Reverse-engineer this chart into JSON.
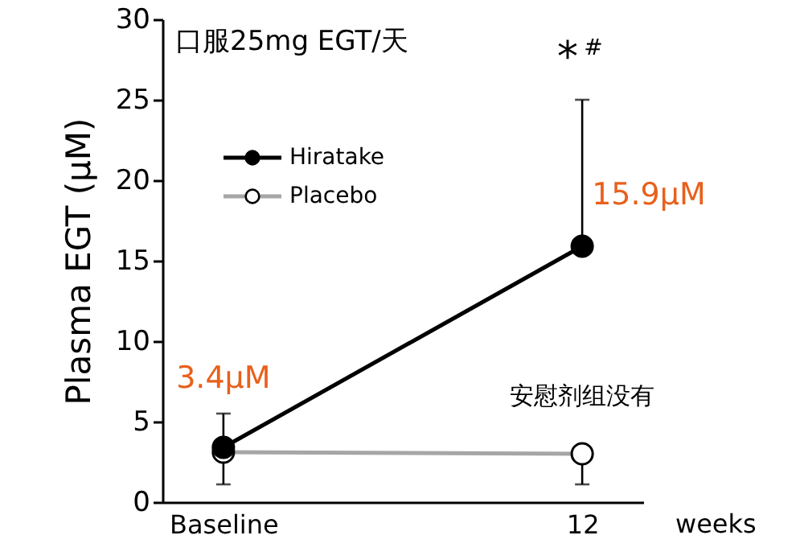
{
  "chart_data": {
    "type": "line",
    "categories": [
      "Baseline",
      "12"
    ],
    "xlabel": "weeks",
    "ylabel": "Plasma EGT (μM)",
    "ylim": [
      0,
      30
    ],
    "yticks": [
      0,
      5,
      10,
      15,
      20,
      25,
      30
    ],
    "series": [
      {
        "name": "Hiratake",
        "color": "#000000",
        "values": [
          3.4,
          15.9
        ],
        "errors": [
          [
            3.4,
            5.5
          ],
          [
            15.9,
            25.0
          ]
        ]
      },
      {
        "name": "Placebo",
        "color": "#a6a6a6",
        "values": [
          3.1,
          3.0
        ],
        "errors": [
          [
            1.1,
            3.1
          ],
          [
            1.1,
            3.0
          ]
        ]
      }
    ],
    "marker": "circle",
    "line_style": "solid",
    "grid": false,
    "legend": "top left",
    "annotations": [
      "口服25mg EGT/天",
      "*",
      "#",
      {
        "text": "3.4μM",
        "x": "Baseline",
        "y": 3.4
      },
      {
        "text": "15.9μM",
        "x": "12",
        "y": 15.9
      },
      {
        "text": "安慰剂组没有",
        "x": "12",
        "y": 3.0
      }
    ]
  }
}
